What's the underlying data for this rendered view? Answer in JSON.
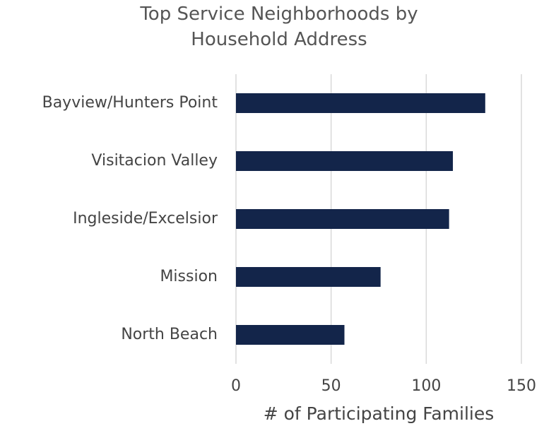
{
  "chart_data": {
    "type": "barh",
    "title": "Top Service Neighborhoods by Household Address",
    "categories": [
      "Bayview/Hunters Point",
      "Visitacion Valley",
      "Ingleside/Excelsior",
      "Mission",
      "North Beach"
    ],
    "values": [
      131,
      114,
      112,
      76,
      57
    ],
    "color": "#13254a",
    "xlabel": "# of Participating Families",
    "xlim": [
      0,
      150
    ],
    "xticks": [
      0,
      50,
      100,
      150
    ],
    "grid": true
  }
}
